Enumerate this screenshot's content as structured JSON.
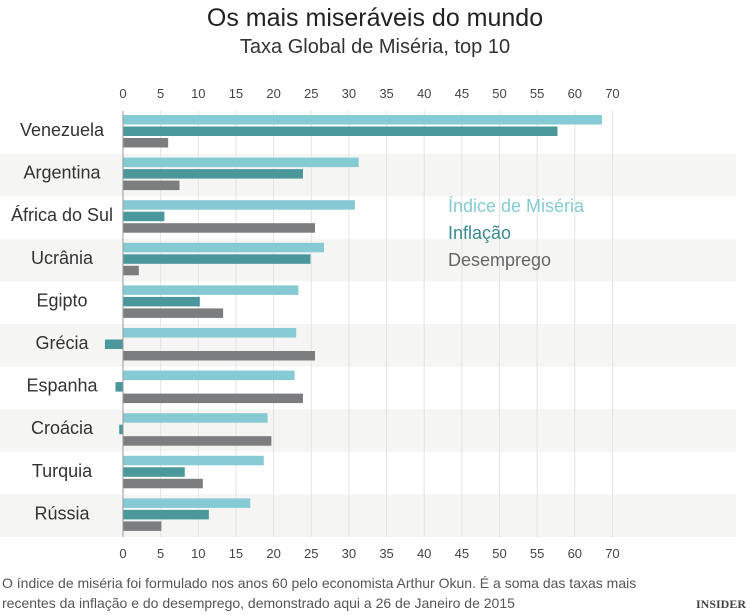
{
  "chart_data": {
    "type": "bar",
    "orientation": "horizontal",
    "title": "Os mais miseráveis do mundo",
    "subtitle": "Taxa Global de Miséria, top 10",
    "categories": [
      "Venezuela",
      "Argentina",
      "África do Sul",
      "Ucrânia",
      "Egipto",
      "Grécia",
      "Espanha",
      "Croácia",
      "Turquia",
      "Rússia"
    ],
    "series": [
      {
        "name": "Índice de Miséria",
        "color": "#86cbd3",
        "values": [
          63.6,
          31.3,
          30.8,
          26.7,
          23.3,
          23.0,
          22.8,
          19.2,
          18.7,
          16.9
        ]
      },
      {
        "name": "Inflação",
        "color": "#4a979c",
        "values": [
          57.7,
          23.9,
          5.5,
          24.9,
          10.2,
          -2.4,
          -1.0,
          -0.5,
          8.2,
          11.4
        ]
      },
      {
        "name": "Desemprego",
        "color": "#7b7d7e",
        "values": [
          6.0,
          7.5,
          25.5,
          2.1,
          13.3,
          25.5,
          23.9,
          19.7,
          10.6,
          5.1
        ]
      }
    ],
    "x_tick_labels": [
      "0",
      "5",
      "10",
      "15",
      "20",
      "25",
      "30",
      "35",
      "40",
      "45",
      "50",
      "55",
      "60",
      "70"
    ],
    "xlim": [
      0,
      65
    ],
    "grid": true,
    "legend_position": "center-right"
  },
  "note": [
    "O índice de miséria foi formulado nos anos 60 pelo economista Arthur Okun. É a soma das taxas mais",
    "recentes da inflação e do desemprego, demonstrado aqui a 26 de Janeiro de 2015"
  ],
  "logo": "INSIDER"
}
